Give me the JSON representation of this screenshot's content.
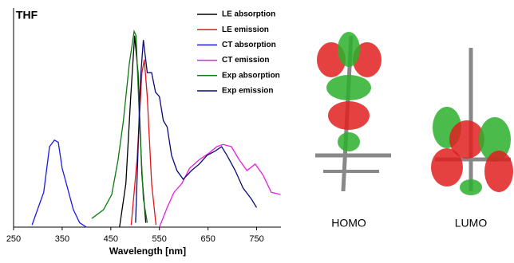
{
  "chart_data": {
    "type": "line",
    "annotation": "THF",
    "xlabel": "Wavelength [nm]",
    "xlim": [
      250,
      800
    ],
    "xticks": [
      250,
      350,
      450,
      550,
      650,
      750
    ],
    "ylim": [
      0,
      1
    ],
    "series": [
      {
        "name": "LE absorption",
        "color": "#000000",
        "x": [
          468,
          481,
          491,
          499,
          506,
          514,
          522
        ],
        "values": [
          0,
          0.2,
          0.6,
          0.88,
          0.71,
          0.24,
          0.02
        ]
      },
      {
        "name": "LE emission",
        "color": "#e8141b",
        "x": [
          492,
          504,
          514,
          519,
          525,
          534,
          543
        ],
        "values": [
          0.01,
          0.31,
          0.71,
          0.77,
          0.6,
          0.2,
          0.01
        ]
      },
      {
        "name": "CT absorption",
        "color": "#1a1ae6",
        "x": [
          288,
          312,
          324,
          334,
          342,
          350,
          361,
          373,
          386,
          400
        ],
        "values": [
          0.01,
          0.16,
          0.37,
          0.4,
          0.39,
          0.27,
          0.18,
          0.08,
          0.02,
          0
        ]
      },
      {
        "name": "CT emission",
        "color": "#e61ee6",
        "x": [
          550,
          566,
          580,
          596,
          612,
          632,
          652,
          668,
          681,
          698,
          714,
          730,
          747,
          763,
          780,
          799
        ],
        "values": [
          0,
          0.09,
          0.16,
          0.2,
          0.27,
          0.31,
          0.34,
          0.37,
          0.38,
          0.37,
          0.31,
          0.26,
          0.29,
          0.24,
          0.16,
          0.15
        ]
      },
      {
        "name": "Exp absorption",
        "color": "#0d7a0d",
        "x": [
          411,
          435,
          452,
          465,
          476,
          488,
          498,
          502,
          509,
          517,
          525
        ],
        "values": [
          0.04,
          0.08,
          0.15,
          0.31,
          0.49,
          0.75,
          0.9,
          0.88,
          0.49,
          0.13,
          0.02
        ]
      },
      {
        "name": "Exp emission",
        "color": "#0a0a78",
        "x": [
          501,
          511,
          517,
          525,
          534,
          542,
          550,
          558,
          566,
          575,
          586,
          599,
          616,
          632,
          648,
          665,
          678,
          689,
          706,
          722,
          739,
          750
        ],
        "values": [
          0.02,
          0.68,
          0.86,
          0.71,
          0.71,
          0.62,
          0.6,
          0.49,
          0.46,
          0.33,
          0.26,
          0.22,
          0.26,
          0.29,
          0.33,
          0.35,
          0.37,
          0.33,
          0.26,
          0.18,
          0.13,
          0.09
        ]
      }
    ]
  },
  "orbitals": [
    {
      "label": "HOMO"
    },
    {
      "label": "LUMO"
    }
  ]
}
